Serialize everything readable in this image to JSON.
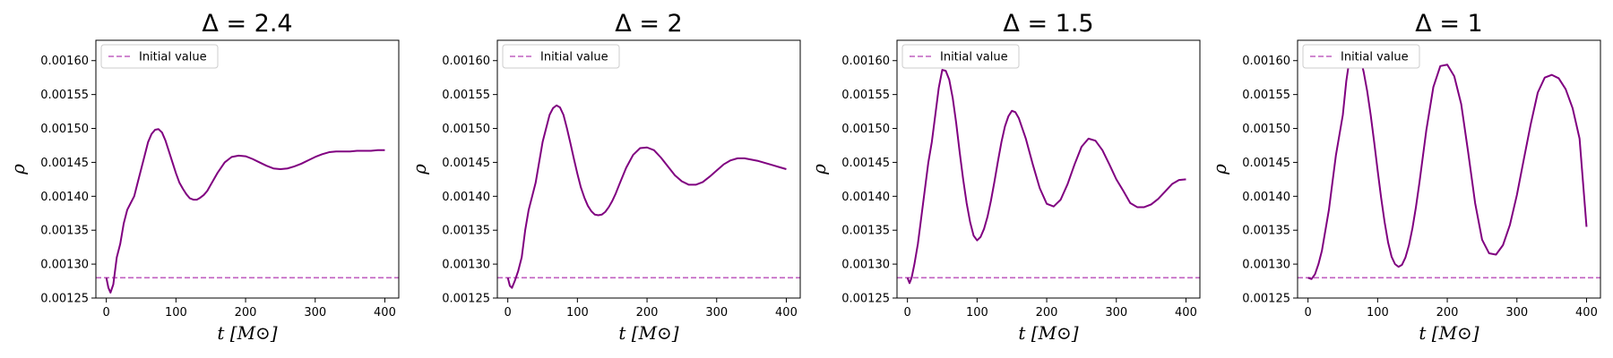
{
  "colors": {
    "series": "#800080",
    "reference": "#c060c0",
    "axes": "#000000"
  },
  "chart_data": [
    {
      "type": "line",
      "title": "Δ = 2.4",
      "xlabel": "t [M⊙]",
      "ylabel": "ρ",
      "xlim": [
        -15,
        420
      ],
      "ylim": [
        0.00125,
        0.00163
      ],
      "xticks": [
        0,
        100,
        200,
        300,
        400
      ],
      "yticks": [
        0.00125,
        0.0013,
        0.00135,
        0.0014,
        0.00145,
        0.0015,
        0.00155,
        0.0016
      ],
      "ytick_labels": [
        "0.00125",
        "0.00130",
        "0.00135",
        "0.00140",
        "0.00145",
        "0.00150",
        "0.00155",
        "0.00160"
      ],
      "legend": {
        "entries": [
          "Initial value"
        ],
        "position": "top-left"
      },
      "grid": false,
      "reference_line": {
        "label": "Initial value",
        "y": 0.00128,
        "style": "dashed"
      },
      "series": [
        {
          "x": [
            0,
            3,
            6,
            10,
            15,
            20,
            25,
            30,
            35,
            40,
            45,
            50,
            55,
            60,
            65,
            70,
            75,
            80,
            85,
            90,
            95,
            100,
            105,
            110,
            115,
            120,
            125,
            130,
            135,
            140,
            145,
            150,
            160,
            170,
            180,
            190,
            200,
            210,
            220,
            230,
            240,
            250,
            260,
            270,
            280,
            290,
            300,
            310,
            320,
            330,
            340,
            350,
            360,
            370,
            380,
            390,
            400
          ],
          "y": [
            0.00128,
            0.001265,
            0.001258,
            0.00127,
            0.00131,
            0.00133,
            0.00136,
            0.00138,
            0.00139,
            0.0014,
            0.00142,
            0.00144,
            0.00146,
            0.00148,
            0.001492,
            0.001498,
            0.001499,
            0.001494,
            0.001482,
            0.001466,
            0.00145,
            0.001434,
            0.00142,
            0.001411,
            0.001403,
            0.001397,
            0.001395,
            0.001395,
            0.001398,
            0.001402,
            0.001408,
            0.001417,
            0.001435,
            0.00145,
            0.001458,
            0.00146,
            0.001459,
            0.001455,
            0.00145,
            0.001445,
            0.001441,
            0.00144,
            0.001441,
            0.001444,
            0.001448,
            0.001453,
            0.001458,
            0.001462,
            0.001465,
            0.001466,
            0.001466,
            0.001466,
            0.001467,
            0.001467,
            0.001467,
            0.001468,
            0.001468
          ]
        }
      ]
    },
    {
      "type": "line",
      "title": "Δ = 2",
      "xlabel": "t [M⊙]",
      "ylabel": "ρ",
      "xlim": [
        -15,
        420
      ],
      "ylim": [
        0.00125,
        0.00163
      ],
      "xticks": [
        0,
        100,
        200,
        300,
        400
      ],
      "yticks": [
        0.00125,
        0.0013,
        0.00135,
        0.0014,
        0.00145,
        0.0015,
        0.00155,
        0.0016
      ],
      "ytick_labels": [
        "0.00125",
        "0.00130",
        "0.00135",
        "0.00140",
        "0.00145",
        "0.00150",
        "0.00155",
        "0.00160"
      ],
      "legend": {
        "entries": [
          "Initial value"
        ],
        "position": "top-left"
      },
      "grid": false,
      "reference_line": {
        "label": "Initial value",
        "y": 0.00128,
        "style": "dashed"
      },
      "series": [
        {
          "x": [
            0,
            3,
            6,
            10,
            15,
            20,
            25,
            30,
            35,
            40,
            45,
            50,
            55,
            60,
            65,
            70,
            75,
            80,
            85,
            90,
            95,
            100,
            105,
            110,
            115,
            120,
            125,
            130,
            135,
            140,
            145,
            150,
            155,
            160,
            170,
            180,
            190,
            200,
            210,
            220,
            230,
            240,
            250,
            260,
            270,
            280,
            290,
            300,
            310,
            320,
            330,
            340,
            350,
            360,
            370,
            380,
            390,
            400
          ],
          "y": [
            0.00128,
            0.001268,
            0.001265,
            0.001275,
            0.00129,
            0.00131,
            0.00135,
            0.00138,
            0.0014,
            0.00142,
            0.00145,
            0.00148,
            0.0015,
            0.00152,
            0.00153,
            0.001534,
            0.001531,
            0.00152,
            0.0015,
            0.001478,
            0.001455,
            0.001433,
            0.001413,
            0.001398,
            0.001386,
            0.001378,
            0.001373,
            0.001372,
            0.001373,
            0.001377,
            0.001384,
            0.001393,
            0.001404,
            0.001417,
            0.001442,
            0.001461,
            0.001471,
            0.001472,
            0.001468,
            0.001457,
            0.001444,
            0.001431,
            0.001422,
            0.001417,
            0.001417,
            0.001421,
            0.001429,
            0.001438,
            0.001447,
            0.001453,
            0.001456,
            0.001456,
            0.001454,
            0.001452,
            0.001449,
            0.001446,
            0.001443,
            0.00144
          ]
        }
      ]
    },
    {
      "type": "line",
      "title": "Δ = 1.5",
      "xlabel": "t [M⊙]",
      "ylabel": "ρ",
      "xlim": [
        -15,
        420
      ],
      "ylim": [
        0.00125,
        0.00163
      ],
      "xticks": [
        0,
        100,
        200,
        300,
        400
      ],
      "yticks": [
        0.00125,
        0.0013,
        0.00135,
        0.0014,
        0.00145,
        0.0015,
        0.00155,
        0.0016
      ],
      "ytick_labels": [
        "0.00125",
        "0.00130",
        "0.00135",
        "0.00140",
        "0.00145",
        "0.00150",
        "0.00155",
        "0.00160"
      ],
      "legend": {
        "entries": [
          "Initial value"
        ],
        "position": "top-left"
      },
      "grid": false,
      "reference_line": {
        "label": "Initial value",
        "y": 0.00128,
        "style": "dashed"
      },
      "series": [
        {
          "x": [
            0,
            3,
            6,
            10,
            15,
            20,
            25,
            30,
            35,
            40,
            45,
            50,
            55,
            60,
            65,
            70,
            75,
            80,
            85,
            90,
            95,
            100,
            105,
            110,
            115,
            120,
            125,
            130,
            135,
            140,
            145,
            150,
            155,
            160,
            170,
            180,
            190,
            200,
            210,
            220,
            230,
            240,
            250,
            260,
            270,
            280,
            290,
            300,
            310,
            320,
            330,
            340,
            350,
            360,
            370,
            380,
            390,
            400
          ],
          "y": [
            0.00128,
            0.001272,
            0.00128,
            0.0013,
            0.00133,
            0.00137,
            0.00141,
            0.00145,
            0.00148,
            0.00152,
            0.00156,
            0.0015864,
            0.001585,
            0.001572,
            0.001545,
            0.001508,
            0.001465,
            0.001425,
            0.00139,
            0.001362,
            0.001342,
            0.001335,
            0.00134,
            0.001352,
            0.00137,
            0.001394,
            0.001422,
            0.001452,
            0.00148,
            0.001503,
            0.001518,
            0.001526,
            0.001524,
            0.001515,
            0.001485,
            0.001447,
            0.001412,
            0.001389,
            0.001385,
            0.001395,
            0.001418,
            0.001447,
            0.001473,
            0.001485,
            0.001482,
            0.001468,
            0.001447,
            0.001425,
            0.001408,
            0.00139,
            0.001384,
            0.001384,
            0.001388,
            0.001396,
            0.001407,
            0.001418,
            0.001424,
            0.001425
          ]
        }
      ]
    },
    {
      "type": "line",
      "title": "Δ = 1",
      "xlabel": "t [M⊙]",
      "ylabel": "ρ",
      "xlim": [
        -15,
        420
      ],
      "ylim": [
        0.00125,
        0.00163
      ],
      "xticks": [
        0,
        100,
        200,
        300,
        400
      ],
      "yticks": [
        0.00125,
        0.0013,
        0.00135,
        0.0014,
        0.00145,
        0.0015,
        0.00155,
        0.0016
      ],
      "ytick_labels": [
        "0.00125",
        "0.00130",
        "0.00135",
        "0.00140",
        "0.00145",
        "0.00150",
        "0.00155",
        "0.00160"
      ],
      "legend": {
        "entries": [
          "Initial value"
        ],
        "position": "top-left"
      },
      "grid": false,
      "reference_line": {
        "label": "Initial value",
        "y": 0.00128,
        "style": "dashed"
      },
      "series": [
        {
          "x": [
            0,
            5,
            10,
            15,
            20,
            25,
            30,
            35,
            40,
            45,
            50,
            55,
            60,
            65,
            70,
            75,
            80,
            85,
            90,
            95,
            100,
            105,
            110,
            115,
            120,
            125,
            130,
            135,
            140,
            145,
            150,
            155,
            160,
            170,
            180,
            190,
            200,
            210,
            220,
            230,
            240,
            250,
            260,
            270,
            280,
            290,
            300,
            310,
            320,
            330,
            340,
            350,
            360,
            370,
            380,
            390,
            400
          ],
          "y": [
            0.00128,
            0.001278,
            0.001285,
            0.0013,
            0.00132,
            0.00135,
            0.00138,
            0.00142,
            0.00146,
            0.00149,
            0.00152,
            0.00157,
            0.001605,
            0.00162,
            0.001617,
            0.001605,
            0.001583,
            0.001555,
            0.00152,
            0.00148,
            0.001438,
            0.001398,
            0.001362,
            0.001332,
            0.001311,
            0.0013,
            0.001296,
            0.001299,
            0.00131,
            0.001328,
            0.001353,
            0.001384,
            0.00142,
            0.001498,
            0.001561,
            0.001592,
            0.001594,
            0.001577,
            0.001536,
            0.001465,
            0.00139,
            0.001336,
            0.001316,
            0.001314,
            0.001328,
            0.001358,
            0.001402,
            0.001455,
            0.001507,
            0.001553,
            0.001575,
            0.001579,
            0.001574,
            0.001558,
            0.00153,
            0.001485,
            0.001355
          ]
        }
      ]
    }
  ]
}
